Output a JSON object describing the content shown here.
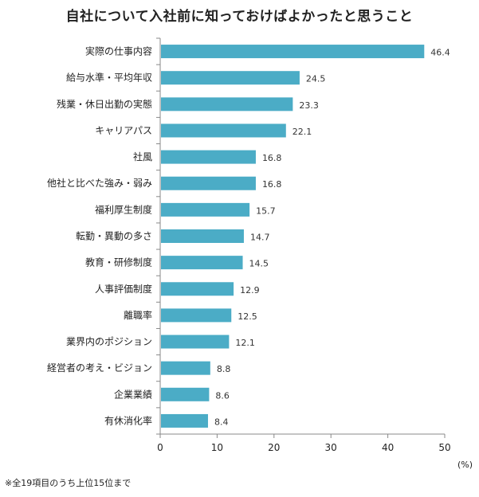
{
  "chart_data": {
    "type": "bar",
    "orientation": "horizontal",
    "title": "自社について入社前に知っておけばよかったと思うこと",
    "categories": [
      "実際の仕事内容",
      "給与水準・平均年収",
      "残業・休日出勤の実態",
      "キャリアパス",
      "社風",
      "他社と比べた強み・弱み",
      "福利厚生制度",
      "転勤・異動の多さ",
      "教育・研修制度",
      "人事評価制度",
      "離職率",
      "業界内のポジション",
      "経営者の考え・ビジョン",
      "企業業績",
      "有休消化率"
    ],
    "values": [
      46.4,
      24.5,
      23.3,
      22.1,
      16.8,
      16.8,
      15.7,
      14.7,
      14.5,
      12.9,
      12.5,
      12.1,
      8.8,
      8.6,
      8.4
    ],
    "value_labels": [
      "46.4",
      "24.5",
      "23.3",
      "22.1",
      "16.8",
      "16.8",
      "15.7",
      "14.7",
      "14.5",
      "12.9",
      "12.5",
      "12.1",
      "8.8",
      "8.6",
      "8.4"
    ],
    "xlim": [
      0,
      50
    ],
    "xticks": [
      0,
      10,
      20,
      30,
      40,
      50
    ],
    "unit": "(%)",
    "bar_color": "#4bacc6",
    "grid": false,
    "footnote": "※全19項目のうち上位15位まで"
  }
}
